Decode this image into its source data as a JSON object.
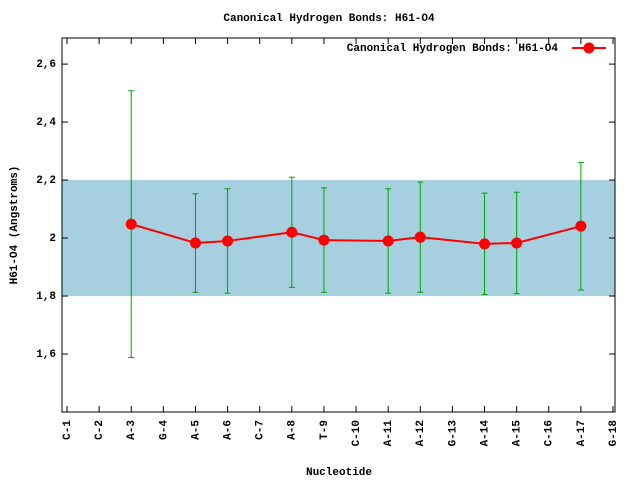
{
  "chart_data": {
    "type": "line",
    "title": "Canonical Hydrogen Bonds: H61-O4",
    "x_label": "Nucleotide",
    "y_label": "H61-O4 (Angstroms)",
    "categories": [
      "C-1",
      "C-2",
      "A-3",
      "G-4",
      "A-5",
      "A-6",
      "C-7",
      "A-8",
      "T-9",
      "C-10",
      "A-11",
      "A-12",
      "G-13",
      "A-14",
      "A-15",
      "C-16",
      "A-17",
      "G-18"
    ],
    "series": [
      {
        "name": "Canonical Hydrogen Bonds: H61-O4",
        "color": "#ff0000",
        "errorbar_color": "#00a000",
        "values": [
          null,
          null,
          2.048,
          null,
          1.983,
          1.99,
          null,
          2.02,
          1.993,
          null,
          1.99,
          2.003,
          null,
          1.98,
          1.983,
          null,
          2.041,
          null
        ],
        "errors": [
          null,
          null,
          0.46,
          null,
          0.17,
          0.18,
          null,
          0.19,
          0.18,
          null,
          0.18,
          0.19,
          null,
          0.175,
          0.175,
          null,
          0.22,
          null
        ]
      }
    ],
    "band": {
      "range": [
        1.8,
        2.2
      ],
      "color": "#a6d0e0"
    },
    "ylim": [
      1.4,
      2.69
    ],
    "yticks": [
      {
        "value": 1.6,
        "label": "1,6"
      },
      {
        "value": 1.8,
        "label": "1,8"
      },
      2,
      {
        "value": 2.2,
        "label": "2,2"
      },
      {
        "value": 2.4,
        "label": "2,4"
      },
      {
        "value": 2.6,
        "label": "2,6"
      }
    ],
    "legend": "top-right"
  }
}
